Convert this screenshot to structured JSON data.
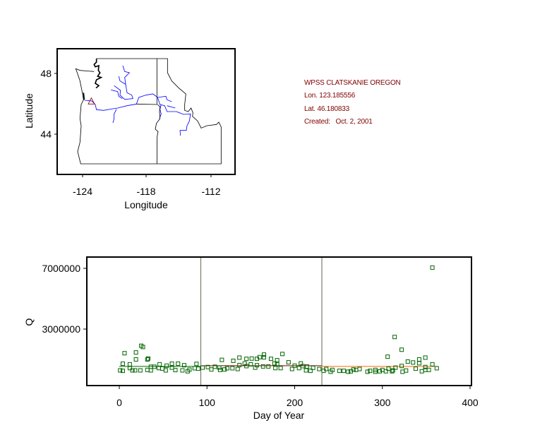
{
  "info": {
    "station": "WPSS CLATSKANIE OREGON",
    "lon": "Lon. 123.185556",
    "lat": "Lat. 46.180833",
    "created": "Created:   Oct. 2, 2001"
  },
  "colors": {
    "points": "#006400",
    "mean_period_1": "#006400",
    "mean_period_2": "#800000",
    "mean_period_3": "#ff6600",
    "rivers": "#0000ff",
    "station_marker": "#800000",
    "info_text": "#800000"
  },
  "chart_data": [
    {
      "type": "map",
      "xlabel": "Longitude",
      "ylabel": "Latitude",
      "x_ticks": [
        "-124",
        "-118",
        "-112"
      ],
      "y_ticks": [
        "48",
        "44"
      ],
      "station_marker": "triangle",
      "station_lon": -123.185556,
      "station_lat": 46.180833
    },
    {
      "type": "scatter",
      "xlabel": "Day of Year",
      "ylabel": "Q",
      "xlim": [
        -35,
        402
      ],
      "ylim": [
        -700000,
        7700000
      ],
      "x_ticks": [
        "0",
        "100",
        "200",
        "300",
        "400"
      ],
      "x_tick_values": [
        0,
        100,
        200,
        300,
        400
      ],
      "y_ticks": [
        "7000000",
        "3000000"
      ],
      "y_tick_values": [
        7000000,
        3000000
      ],
      "period_dividers": [
        93,
        231
      ],
      "period_means": [
        {
          "from": 0,
          "to": 93,
          "value": 540000
        },
        {
          "from": 93,
          "to": 231,
          "value": 590000
        },
        {
          "from": 231,
          "to": 362,
          "value": 540000
        }
      ],
      "points": [
        [
          1,
          280000
        ],
        [
          4,
          250000
        ],
        [
          6,
          1410000
        ],
        [
          4,
          720000
        ],
        [
          12,
          680000
        ],
        [
          12,
          430000
        ],
        [
          15,
          280000
        ],
        [
          18,
          280000
        ],
        [
          19,
          1460000
        ],
        [
          19,
          1000000
        ],
        [
          24,
          280000
        ],
        [
          25,
          1900000
        ],
        [
          27,
          1820000
        ],
        [
          32,
          1000000
        ],
        [
          33,
          1060000
        ],
        [
          32,
          310000
        ],
        [
          36,
          520000
        ],
        [
          36,
          280000
        ],
        [
          40,
          520000
        ],
        [
          46,
          680000
        ],
        [
          45,
          430000
        ],
        [
          49,
          400000
        ],
        [
          53,
          280000
        ],
        [
          54,
          590000
        ],
        [
          60,
          720000
        ],
        [
          60,
          460000
        ],
        [
          64,
          300000
        ],
        [
          67,
          720000
        ],
        [
          72,
          280000
        ],
        [
          74,
          620000
        ],
        [
          78,
          220000
        ],
        [
          80,
          330000
        ],
        [
          86,
          420000
        ],
        [
          88,
          710000
        ],
        [
          90,
          390000
        ],
        [
          95,
          460000
        ],
        [
          101,
          500000
        ],
        [
          105,
          340000
        ],
        [
          109,
          520000
        ],
        [
          114,
          460000
        ],
        [
          115,
          310000
        ],
        [
          117,
          970000
        ],
        [
          120,
          340000
        ],
        [
          123,
          420000
        ],
        [
          129,
          420000
        ],
        [
          130,
          910000
        ],
        [
          135,
          370000
        ],
        [
          137,
          1120000
        ],
        [
          137,
          630000
        ],
        [
          143,
          740000
        ],
        [
          145,
          560000
        ],
        [
          145,
          1040000
        ],
        [
          150,
          680000
        ],
        [
          151,
          1060000
        ],
        [
          155,
          460000
        ],
        [
          157,
          1040000
        ],
        [
          157,
          620000
        ],
        [
          160,
          1150000
        ],
        [
          165,
          1320000
        ],
        [
          165,
          1140000
        ],
        [
          164,
          540000
        ],
        [
          170,
          540000
        ],
        [
          173,
          1040000
        ],
        [
          177,
          740000
        ],
        [
          178,
          430000
        ],
        [
          180,
          950000
        ],
        [
          180,
          680000
        ],
        [
          184,
          430000
        ],
        [
          186,
          1360000
        ],
        [
          193,
          810000
        ],
        [
          197,
          370000
        ],
        [
          200,
          590000
        ],
        [
          205,
          430000
        ],
        [
          207,
          740000
        ],
        [
          209,
          560000
        ],
        [
          213,
          280000
        ],
        [
          214,
          540000
        ],
        [
          218,
          250000
        ],
        [
          221,
          450000
        ],
        [
          228,
          370000
        ],
        [
          233,
          250000
        ],
        [
          236,
          370000
        ],
        [
          241,
          190000
        ],
        [
          243,
          310000
        ],
        [
          251,
          250000
        ],
        [
          256,
          250000
        ],
        [
          261,
          190000
        ],
        [
          264,
          220000
        ],
        [
          267,
          340000
        ],
        [
          270,
          310000
        ],
        [
          274,
          370000
        ],
        [
          283,
          190000
        ],
        [
          286,
          250000
        ],
        [
          292,
          190000
        ],
        [
          292,
          310000
        ],
        [
          297,
          220000
        ],
        [
          300,
          310000
        ],
        [
          304,
          220000
        ],
        [
          307,
          390000
        ],
        [
          306,
          1180000
        ],
        [
          311,
          220000
        ],
        [
          312,
          280000
        ],
        [
          314,
          2480000
        ],
        [
          315,
          460000
        ],
        [
          322,
          570000
        ],
        [
          322,
          1640000
        ],
        [
          323,
          190000
        ],
        [
          327,
          270000
        ],
        [
          329,
          860000
        ],
        [
          335,
          800000
        ],
        [
          338,
          390000
        ],
        [
          342,
          1000000
        ],
        [
          342,
          750000
        ],
        [
          345,
          220000
        ],
        [
          349,
          1120000
        ],
        [
          349,
          500000
        ],
        [
          349,
          310000
        ],
        [
          353,
          310000
        ],
        [
          357,
          680000
        ],
        [
          357,
          7050000
        ],
        [
          362,
          420000
        ]
      ]
    }
  ]
}
